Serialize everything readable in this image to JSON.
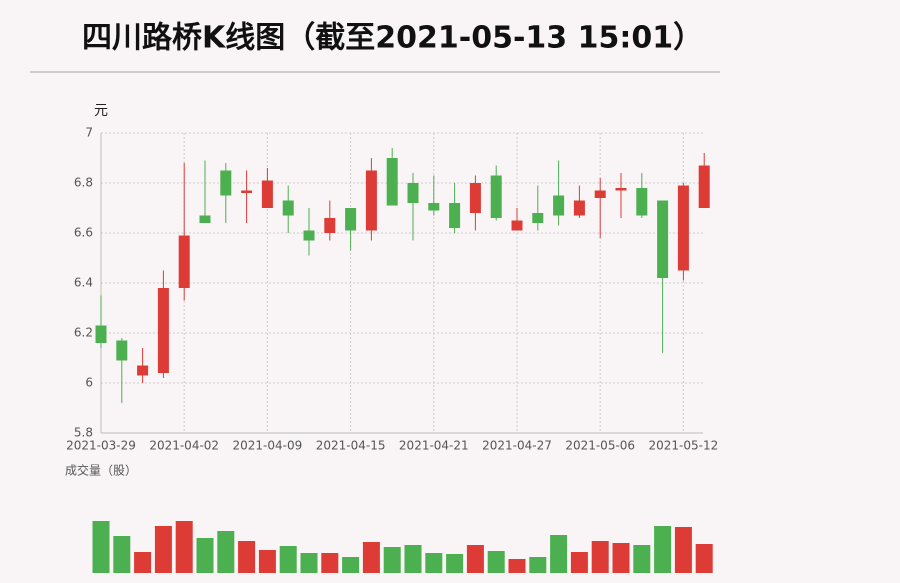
{
  "chart_data": {
    "type": "candlestick",
    "title": "四川路桥K线图（截至2021-05-13 15:01）",
    "y_label": "元",
    "categories": [
      "2021-03-29",
      null,
      null,
      null,
      "2021-04-02",
      null,
      null,
      null,
      "2021-04-09",
      null,
      null,
      null,
      "2021-04-15",
      null,
      null,
      null,
      "2021-04-21",
      null,
      null,
      null,
      "2021-04-27",
      null,
      null,
      null,
      "2021-05-06",
      null,
      null,
      null,
      "2021-05-12",
      null
    ],
    "open": [
      6.23,
      6.17,
      6.03,
      6.04,
      6.38,
      6.67,
      6.85,
      6.76,
      6.7,
      6.73,
      6.61,
      6.6,
      6.7,
      6.61,
      6.9,
      6.8,
      6.72,
      6.72,
      6.68,
      6.83,
      6.61,
      6.68,
      6.75,
      6.67,
      6.74,
      6.77,
      6.78,
      6.73,
      6.45,
      6.7
    ],
    "high": [
      6.35,
      6.18,
      6.14,
      6.45,
      6.88,
      6.89,
      6.88,
      6.85,
      6.86,
      6.79,
      6.7,
      6.73,
      6.7,
      6.9,
      6.94,
      6.84,
      6.83,
      6.8,
      6.83,
      6.87,
      6.7,
      6.79,
      6.89,
      6.79,
      6.82,
      6.84,
      6.84,
      6.73,
      6.8,
      6.92
    ],
    "low": [
      6.14,
      5.92,
      6.0,
      6.02,
      6.33,
      6.64,
      6.64,
      6.64,
      6.7,
      6.6,
      6.51,
      6.57,
      6.53,
      6.57,
      6.71,
      6.57,
      6.67,
      6.6,
      6.61,
      6.65,
      6.61,
      6.61,
      6.63,
      6.66,
      6.58,
      6.66,
      6.66,
      6.12,
      6.41,
      6.7
    ],
    "close": [
      6.16,
      6.09,
      6.07,
      6.38,
      6.59,
      6.64,
      6.75,
      6.77,
      6.81,
      6.67,
      6.57,
      6.66,
      6.61,
      6.85,
      6.71,
      6.72,
      6.69,
      6.62,
      6.8,
      6.66,
      6.65,
      6.64,
      6.67,
      6.73,
      6.77,
      6.78,
      6.67,
      6.42,
      6.79,
      6.87
    ],
    "ylim": [
      5.8,
      7
    ],
    "yticks": [
      5.8,
      6,
      6.2,
      6.4,
      6.6,
      6.8,
      7
    ],
    "grid": true,
    "up_color": "#dd3b36",
    "down_color": "#4caf50",
    "volume": {
      "label": "成交量（股）",
      "values": [
        52,
        37,
        21,
        47,
        52,
        35,
        42,
        32,
        23,
        27,
        20,
        20,
        16,
        31,
        26,
        28,
        20,
        19,
        28,
        22,
        14,
        16,
        38,
        21,
        32,
        30,
        28,
        47,
        46,
        29
      ]
    }
  }
}
